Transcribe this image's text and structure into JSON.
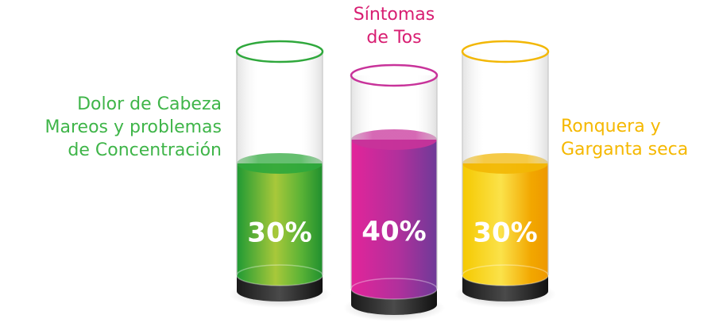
{
  "chart_data": {
    "type": "bar",
    "title": "",
    "categories": [
      "Dolor de Cabeza Mareos y problemas de Concentración",
      "Síntomas de Tos",
      "Ronquera y Garganta seca"
    ],
    "values": [
      30,
      40,
      30
    ],
    "value_labels": [
      "30%",
      "40%",
      "30%"
    ],
    "unit": "%",
    "colors": [
      "#2fa83c",
      "#c8339a",
      "#f2b705"
    ],
    "label_lines": [
      [
        "Dolor de Cabeza",
        "Mareos y problemas",
        "de Concentración"
      ],
      [
        "Síntomas",
        "de Tos"
      ],
      [
        "Ronquera y",
        "Garganta seca"
      ]
    ]
  }
}
